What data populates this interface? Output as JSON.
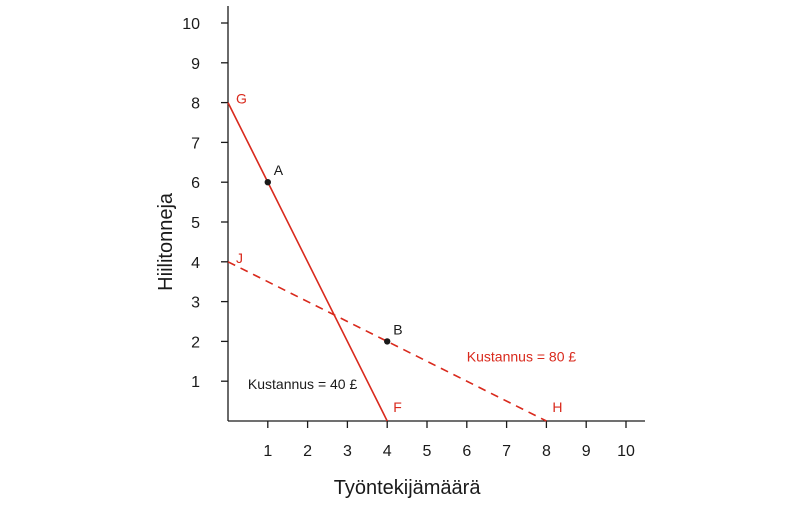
{
  "chart_data": {
    "type": "line",
    "xlabel": "Työntekijämäärä",
    "ylabel": "Hiilitonneja",
    "xlim": [
      0,
      10.5
    ],
    "ylim": [
      0,
      10.5
    ],
    "x_ticks": [
      "1",
      "2",
      "3",
      "4",
      "5",
      "6",
      "7",
      "8",
      "9",
      "10"
    ],
    "y_ticks": [
      "1",
      "2",
      "3",
      "4",
      "5",
      "6",
      "7",
      "8",
      "9",
      "10"
    ],
    "colors": {
      "accent": "#d9291c",
      "text": "#1a1a1a"
    },
    "series": [
      {
        "name": "Kustannus = 40 £",
        "style": "solid",
        "points": [
          {
            "x": 0,
            "y": 8
          },
          {
            "x": 4,
            "y": 0
          }
        ],
        "start_label": "G",
        "end_label": "F"
      },
      {
        "name": "Kustannus = 80 £",
        "style": "dashed",
        "points": [
          {
            "x": 0,
            "y": 4
          },
          {
            "x": 8,
            "y": 0
          }
        ],
        "start_label": "J",
        "end_label": "H"
      }
    ],
    "points": [
      {
        "label": "A",
        "x": 1,
        "y": 6
      },
      {
        "label": "B",
        "x": 4,
        "y": 2
      }
    ],
    "annotations": [
      {
        "text": "Kustannus = 40 £",
        "x": 0.5,
        "y": 0.8,
        "color": "#1a1a1a"
      },
      {
        "text": "Kustannus = 80 £",
        "x": 6,
        "y": 1.5,
        "color": "#d9291c"
      }
    ]
  }
}
